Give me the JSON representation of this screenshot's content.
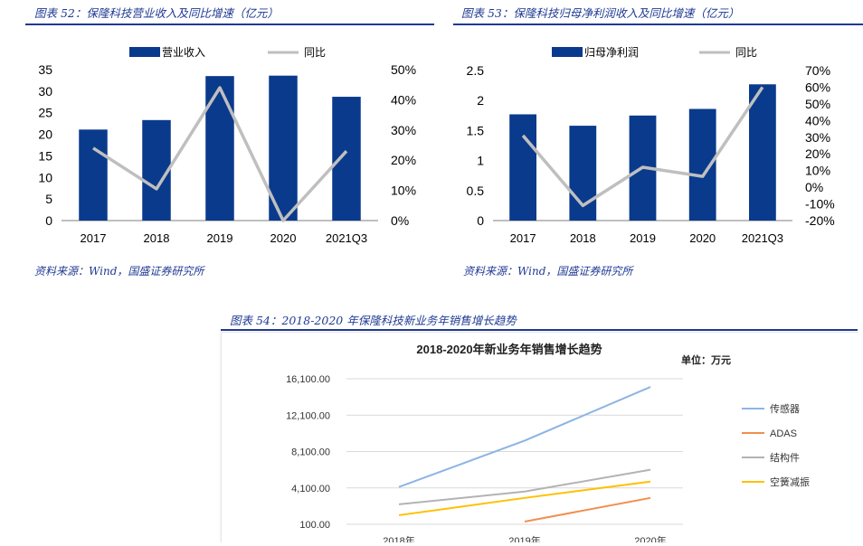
{
  "fig52": {
    "caption": "图表 52：保隆科技营业收入及同比增速（亿元）",
    "source": "资料来源：Wind，国盛证券研究所"
  },
  "fig53": {
    "caption": "图表 53：保隆科技归母净利润收入及同比增速（亿元）",
    "source": "资料来源：Wind，国盛证券研究所"
  },
  "fig54": {
    "caption": "图表 54：2018-2020 年保隆科技新业务年销售增长趋势"
  },
  "colors": {
    "bar": "#0a3a8c",
    "line": "#bfbfbf",
    "caption": "#1f3a93"
  },
  "chart_data": [
    {
      "type": "bar",
      "categories": [
        "2017",
        "2018",
        "2019",
        "2020",
        "2021Q3"
      ],
      "series": [
        {
          "name": "营业收入",
          "type": "bar",
          "values": [
            21.1,
            23.3,
            33.5,
            33.6,
            28.7
          ],
          "axis": "left"
        },
        {
          "name": "同比",
          "type": "line",
          "values": [
            0.24,
            0.105,
            0.44,
            0.0,
            0.23
          ],
          "axis": "right"
        }
      ],
      "ylim_left": [
        0,
        35
      ],
      "yticks_left": [
        "0",
        "5",
        "10",
        "15",
        "20",
        "25",
        "30",
        "35"
      ],
      "ylim_right": [
        0,
        0.5
      ],
      "yticks_right": [
        "0%",
        "10%",
        "20%",
        "30%",
        "40%",
        "50%"
      ],
      "legend": "top"
    },
    {
      "type": "bar",
      "categories": [
        "2017",
        "2018",
        "2019",
        "2020",
        "2021Q3"
      ],
      "series": [
        {
          "name": "归母净利润",
          "type": "bar",
          "values": [
            1.77,
            1.58,
            1.75,
            1.86,
            2.27
          ],
          "axis": "left"
        },
        {
          "name": "同比",
          "type": "line",
          "values": [
            0.31,
            -0.11,
            0.12,
            0.065,
            0.6
          ],
          "axis": "right"
        }
      ],
      "ylim_left": [
        0,
        2.5
      ],
      "yticks_left": [
        "0",
        "0.5",
        "1",
        "1.5",
        "2",
        "2.5"
      ],
      "ylim_right": [
        -0.2,
        0.7
      ],
      "yticks_right": [
        "-20%",
        "-10%",
        "0%",
        "10%",
        "20%",
        "30%",
        "40%",
        "50%",
        "60%",
        "70%"
      ],
      "legend": "top"
    },
    {
      "type": "line",
      "title": "2018-2020年新业务年销售增长趋势",
      "unit_note": "单位：万元",
      "categories": [
        "2018年",
        "2019年",
        "2020年"
      ],
      "ylim": [
        100,
        16100
      ],
      "yticks": [
        "100.00",
        "4,100.00",
        "8,100.00",
        "12,100.00",
        "16,100.00"
      ],
      "series": [
        {
          "name": "传感器",
          "color": "#8db4e2",
          "values": [
            4200,
            9300,
            15200
          ]
        },
        {
          "name": "ADAS",
          "color": "#f28e4f",
          "values": [
            null,
            400,
            3000
          ]
        },
        {
          "name": "结构件",
          "color": "#b3b3b3",
          "values": [
            2300,
            3700,
            6100
          ]
        },
        {
          "name": "空簧减振",
          "color": "#ffc000",
          "values": [
            1100,
            3000,
            4800
          ]
        }
      ],
      "legend": "right"
    }
  ]
}
